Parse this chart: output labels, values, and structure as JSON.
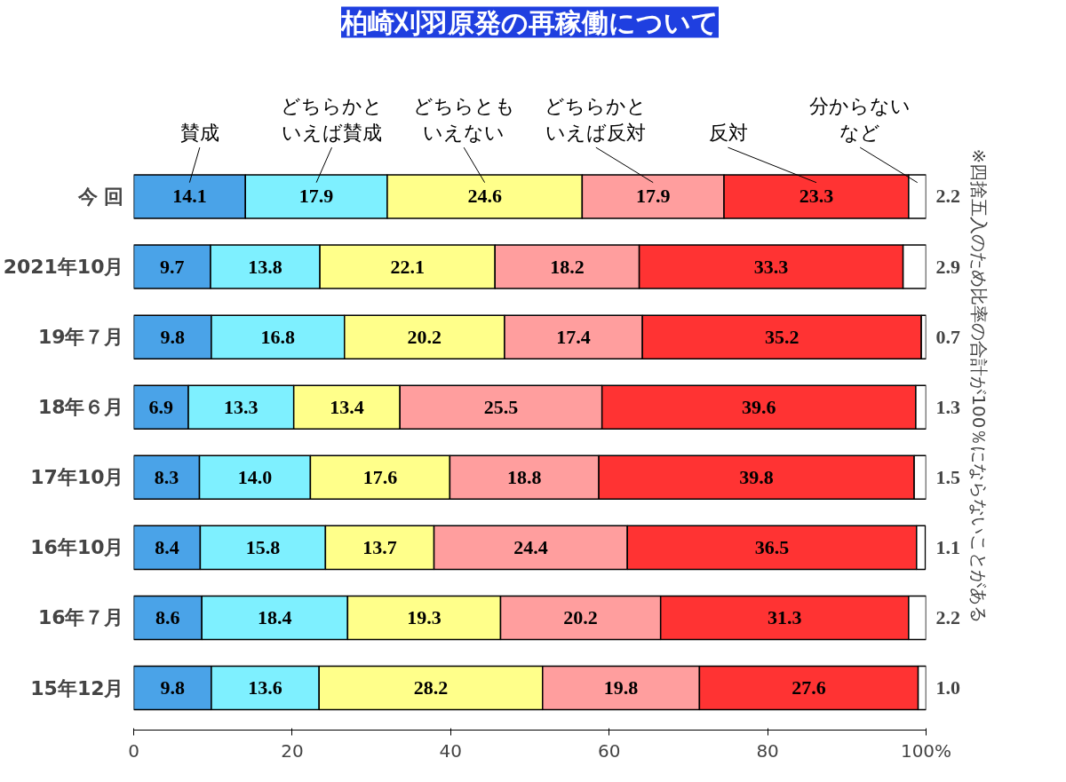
{
  "chart_data": {
    "type": "bar",
    "orientation": "horizontal",
    "stacked": true,
    "title": "柏崎刈羽原発の再稼働について",
    "categories": [
      "今 回",
      "2021年10月",
      "19年７月",
      "18年６月",
      "17年10月",
      "16年10月",
      "16年７月",
      "15年12月"
    ],
    "series": [
      {
        "name": "賛成",
        "color": "#4aa3e8",
        "values": [
          14.1,
          9.7,
          9.8,
          6.9,
          8.3,
          8.4,
          8.6,
          9.8
        ],
        "value_labels": [
          "14.1",
          "9.7",
          "9.8",
          "6.9",
          "8.3",
          "8.4",
          "8.6",
          "9.8"
        ]
      },
      {
        "name": "どちらかといえば賛成",
        "color": "#7ef0ff",
        "values": [
          17.9,
          13.8,
          16.8,
          13.3,
          14.0,
          15.8,
          18.4,
          13.6
        ],
        "value_labels": [
          "17.9",
          "13.8",
          "16.8",
          "13.3",
          "14.0",
          "15.8",
          "18.4",
          "13.6"
        ]
      },
      {
        "name": "どちらともいえない",
        "color": "#ffff8a",
        "values": [
          24.6,
          22.1,
          20.2,
          13.4,
          17.6,
          13.7,
          19.3,
          28.2
        ],
        "value_labels": [
          "24.6",
          "22.1",
          "20.2",
          "13.4",
          "17.6",
          "13.7",
          "19.3",
          "28.2"
        ]
      },
      {
        "name": "どちらかといえば反対",
        "color": "#ff9e9e",
        "values": [
          17.9,
          18.2,
          17.4,
          25.5,
          18.8,
          24.4,
          20.2,
          19.8
        ],
        "value_labels": [
          "17.9",
          "18.2",
          "17.4",
          "25.5",
          "18.8",
          "24.4",
          "20.2",
          "19.8"
        ]
      },
      {
        "name": "反対",
        "color": "#ff3333",
        "values": [
          23.3,
          33.3,
          35.2,
          39.6,
          39.8,
          36.5,
          31.3,
          27.6
        ],
        "value_labels": [
          "23.3",
          "33.3",
          "35.2",
          "39.6",
          "39.8",
          "36.5",
          "31.3",
          "27.6"
        ]
      },
      {
        "name": "分からないなど",
        "color": "#ffffff",
        "values": [
          2.2,
          2.9,
          0.7,
          1.3,
          1.5,
          1.1,
          2.2,
          1.0
        ],
        "value_labels": [
          "2.2",
          "2.9",
          "0.7",
          "1.3",
          "1.5",
          "1.1",
          "2.2",
          "1.0"
        ]
      }
    ],
    "xlim": [
      0,
      100
    ],
    "xticks": [
      0,
      20,
      40,
      60,
      80,
      {
        "value": 100,
        "label": "100%"
      }
    ],
    "grid": false,
    "legend": "top",
    "annotations": [
      "※四捨五入のため比率の合計が100％にならないことがある"
    ]
  }
}
